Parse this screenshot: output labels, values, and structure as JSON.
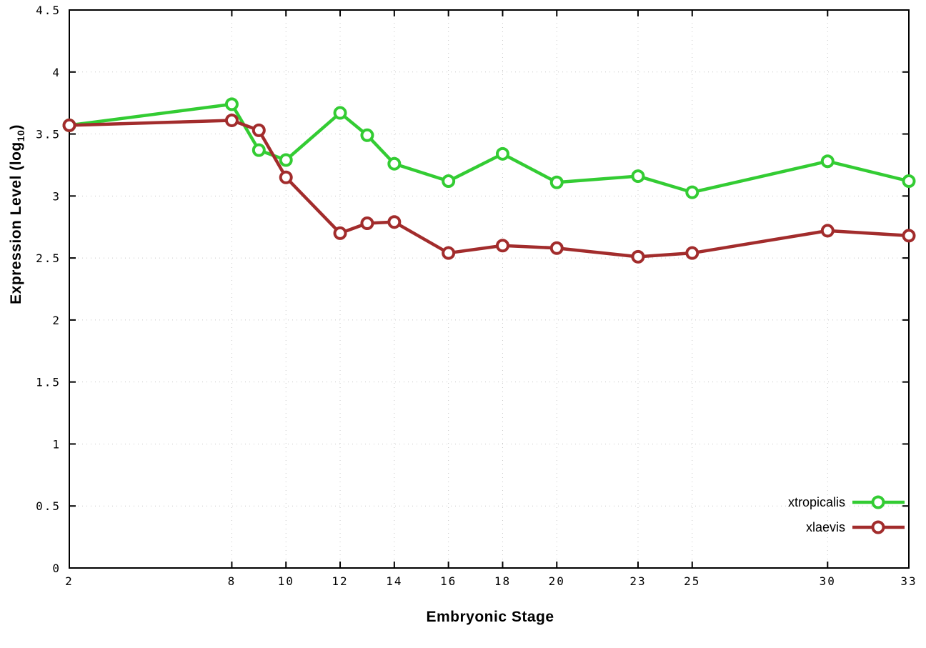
{
  "chart_data": {
    "type": "line",
    "title": "",
    "xlabel": "Embryonic Stage",
    "ylabel": "Expression Level (log10)",
    "ylabel_main": "Expression Level (log",
    "ylabel_sub": "10",
    "ylabel_close": ")",
    "xlim": [
      2,
      33
    ],
    "ylim": [
      0,
      4.5
    ],
    "x_ticks": [
      2,
      8,
      10,
      12,
      14,
      16,
      18,
      20,
      23,
      25,
      30,
      33
    ],
    "y_ticks": [
      0,
      0.5,
      1,
      1.5,
      2,
      2.5,
      3,
      3.5,
      4,
      4.5
    ],
    "grid": true,
    "legend_position": "bottom-right-inside",
    "background": "#ffffff",
    "border_color": "#000000",
    "grid_color": "#c8c8c8",
    "x": [
      2,
      8,
      9,
      10,
      12,
      13,
      14,
      16,
      18,
      20,
      23,
      25,
      30,
      33
    ],
    "series": [
      {
        "name": "xtropicalis",
        "color": "#33cc33",
        "values": [
          3.57,
          3.74,
          3.37,
          3.29,
          3.67,
          3.49,
          3.26,
          3.12,
          3.34,
          3.11,
          3.16,
          3.03,
          3.28,
          3.12
        ]
      },
      {
        "name": "xlaevis",
        "color": "#a22c2c",
        "values": [
          3.57,
          3.61,
          3.53,
          3.15,
          2.7,
          2.78,
          2.79,
          2.54,
          2.6,
          2.58,
          2.51,
          2.54,
          2.72,
          2.68
        ]
      }
    ]
  }
}
